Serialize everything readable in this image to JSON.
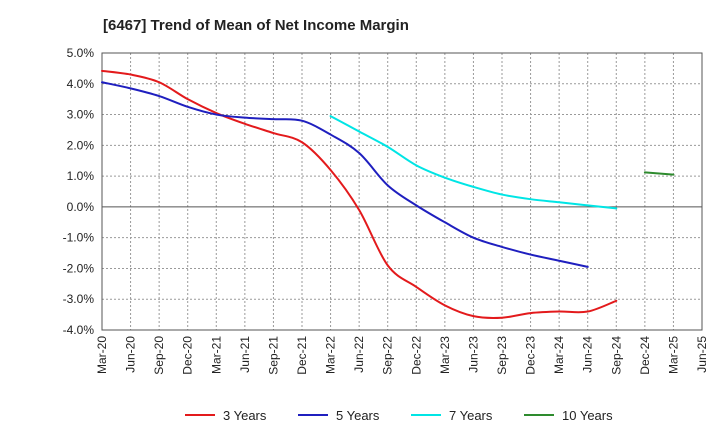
{
  "chart_data": {
    "type": "line",
    "title": "[6467]  Trend of Mean of Net Income Margin",
    "xlabel": "",
    "ylabel": "",
    "ylim": [
      -4.0,
      5.0
    ],
    "y_ticks": [
      "5.0%",
      "4.0%",
      "3.0%",
      "2.0%",
      "1.0%",
      "0.0%",
      "-1.0%",
      "-2.0%",
      "-3.0%",
      "-4.0%"
    ],
    "x_ticks": [
      "Mar-20",
      "Jun-20",
      "Sep-20",
      "Dec-20",
      "Mar-21",
      "Jun-21",
      "Sep-21",
      "Dec-21",
      "Mar-22",
      "Jun-22",
      "Sep-22",
      "Dec-22",
      "Mar-23",
      "Jun-23",
      "Sep-23",
      "Dec-23",
      "Mar-24",
      "Jun-24",
      "Sep-24",
      "Dec-24",
      "Mar-25",
      "Jun-25"
    ],
    "grid": true,
    "legend_position": "bottom",
    "series": [
      {
        "name": "3 Years",
        "color": "#e31a1c",
        "values": [
          4.42,
          4.3,
          4.05,
          3.5,
          3.05,
          2.7,
          2.4,
          2.1,
          1.2,
          -0.1,
          -1.9,
          -2.6,
          -3.2,
          -3.55,
          -3.6,
          -3.45,
          -3.4,
          -3.4,
          -3.05,
          null,
          null,
          null
        ]
      },
      {
        "name": "5 Years",
        "color": "#1f1fbf",
        "values": [
          4.05,
          3.85,
          3.6,
          3.25,
          3.0,
          2.9,
          2.85,
          2.8,
          2.35,
          1.75,
          0.7,
          0.05,
          -0.5,
          -1.0,
          -1.3,
          -1.55,
          -1.75,
          -1.95,
          null,
          null,
          null,
          null
        ]
      },
      {
        "name": "7 Years",
        "color": "#00e5e5",
        "values": [
          null,
          null,
          null,
          null,
          null,
          null,
          null,
          null,
          2.95,
          2.45,
          1.95,
          1.35,
          0.95,
          0.65,
          0.4,
          0.25,
          0.15,
          0.05,
          -0.05,
          null,
          null,
          null
        ]
      },
      {
        "name": "10 Years",
        "color": "#2e8b2e",
        "values": [
          null,
          null,
          null,
          null,
          null,
          null,
          null,
          null,
          null,
          null,
          null,
          null,
          null,
          null,
          null,
          null,
          null,
          null,
          null,
          1.12,
          1.05,
          null
        ]
      }
    ]
  }
}
